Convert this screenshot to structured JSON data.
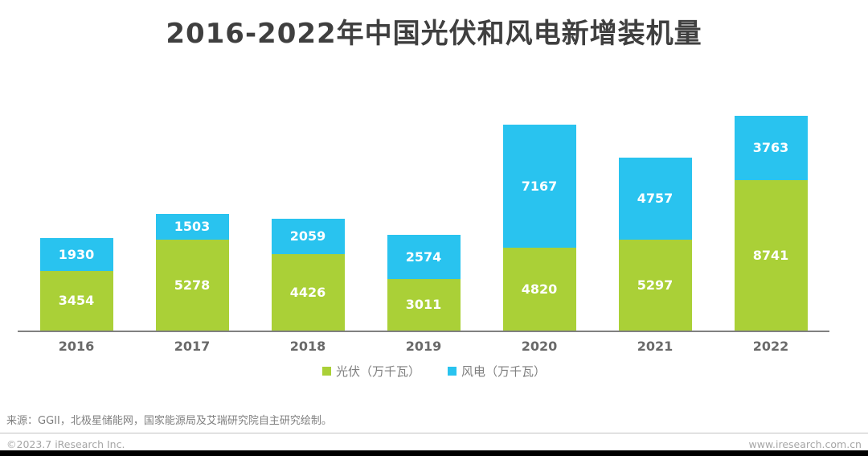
{
  "title": "2016-2022年中国光伏和风电新增装机量",
  "chart_data": {
    "type": "bar",
    "stacked": true,
    "title": "2016-2022年中国光伏和风电新增装机量",
    "categories": [
      "2016",
      "2017",
      "2018",
      "2019",
      "2020",
      "2021",
      "2022"
    ],
    "series": [
      {
        "name": "光伏（万千瓦）",
        "key": "pv",
        "color": "#aad037",
        "values": [
          3454,
          5278,
          4426,
          3011,
          4820,
          5297,
          8741
        ]
      },
      {
        "name": "风电（万千瓦）",
        "key": "wind",
        "color": "#29c3ef",
        "values": [
          1930,
          1503,
          2059,
          2574,
          7167,
          4757,
          3763
        ]
      }
    ],
    "xlabel": "",
    "ylabel": "",
    "ylim": [
      0,
      12600
    ],
    "grid": false,
    "y_axis_visible": false,
    "legend_position": "bottom",
    "value_labels": "white, centered inside each segment"
  },
  "footer": {
    "source": "来源：GGII，北极星储能网，国家能源局及艾瑞研究院自主研究绘制。",
    "copyright": "©2023.7 iResearch Inc.",
    "website": "www.iresearch.com.cn"
  },
  "colors": {
    "pv_green": "#aad037",
    "wind_blue": "#29c3ef",
    "title_text": "#3f3f3f",
    "axis_line": "#808080",
    "axis_label_text": "#696969",
    "legend_text": "#808080",
    "source_text": "#7f7f7f",
    "footer_text": "#a6a6a6",
    "footer_bar": "#000000"
  }
}
